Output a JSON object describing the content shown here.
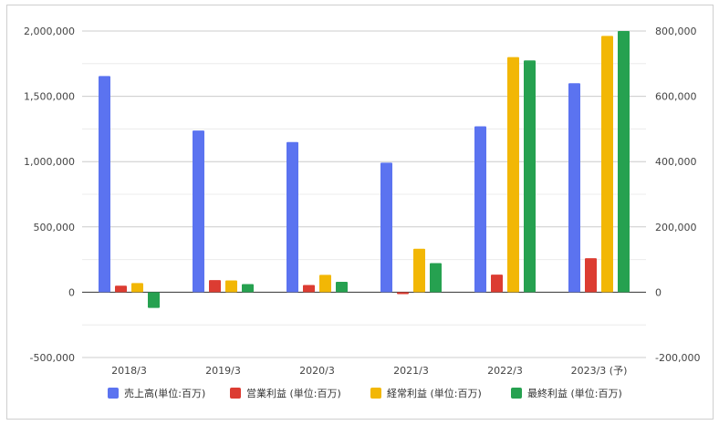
{
  "chart_data": {
    "type": "bar",
    "categories": [
      "2018/3",
      "2019/3",
      "2020/3",
      "2021/3",
      "2022/3",
      "2023/3 (予)"
    ],
    "left_axis": {
      "ylim": [
        -500000,
        2000000
      ],
      "ticks": [
        -500000,
        0,
        500000,
        1000000,
        1500000,
        2000000
      ],
      "tick_labels": [
        "-500,000",
        "0",
        "500,000",
        "1,000,000",
        "1,500,000",
        "2,000,000"
      ]
    },
    "right_axis": {
      "ylim": [
        -200000,
        800000
      ],
      "ticks": [
        -200000,
        0,
        200000,
        400000,
        600000,
        800000
      ],
      "tick_labels": [
        "-200,000",
        "0",
        "200,000",
        "400,000",
        "600,000",
        "800,000"
      ]
    },
    "series": [
      {
        "name": "売上高(単位:百万)",
        "axis": "left",
        "color": "#5b73f0",
        "values": [
          1655000,
          1238000,
          1150000,
          992000,
          1270000,
          1600000
        ]
      },
      {
        "name": "営業利益 (単位:百万)",
        "axis": "right",
        "color": "#dc3c32",
        "values": [
          20000,
          37000,
          22000,
          -6000,
          54000,
          104000
        ]
      },
      {
        "name": "経常利益 (単位:百万)",
        "axis": "right",
        "color": "#f2b705",
        "values": [
          28000,
          36000,
          53000,
          133000,
          720000,
          785000
        ]
      },
      {
        "name": "最終利益 (単位:百万)",
        "axis": "right",
        "color": "#26a150",
        "values": [
          -48000,
          25000,
          32000,
          89000,
          710000,
          800000
        ]
      }
    ],
    "grid": true,
    "legend_position": "bottom"
  }
}
